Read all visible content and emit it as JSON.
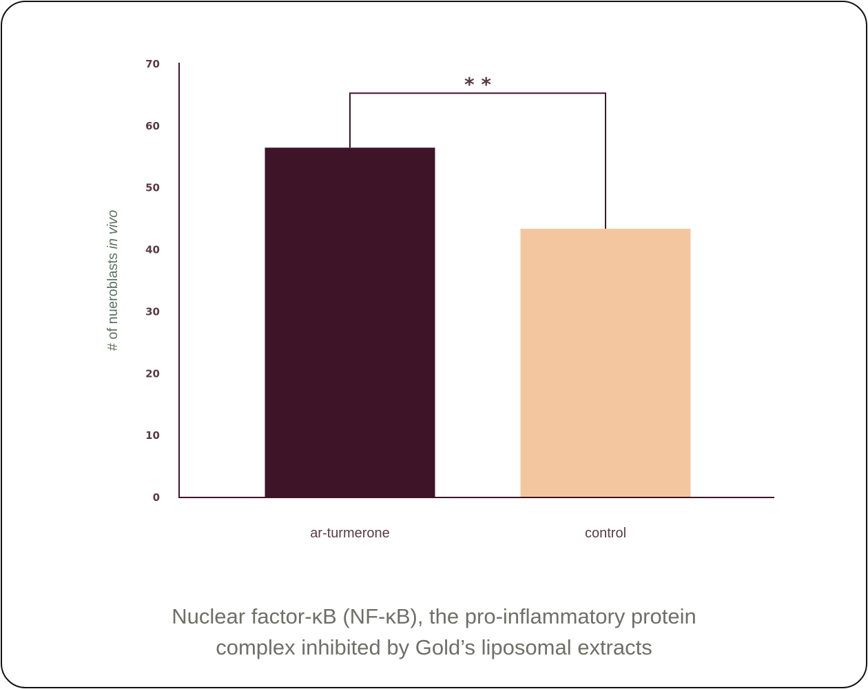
{
  "chart_data": {
    "type": "bar",
    "categories": [
      "ar-turmerone",
      "control"
    ],
    "values": [
      56.5,
      43.4
    ],
    "colors": [
      "#3d1428",
      "#f4c6a0"
    ],
    "ylabel_prefix": "# of nueroblasts ",
    "ylabel_italic": "in vivo",
    "xlabel": "",
    "ylim": [
      0,
      70
    ],
    "yticks": [
      0,
      10,
      20,
      30,
      40,
      50,
      60,
      70
    ],
    "significance": {
      "label": "* *",
      "between": [
        "ar-turmerone",
        "control"
      ],
      "bracket_level": 65.3
    },
    "grid": false,
    "axis_color": "#3d1428",
    "text_color": "#5a3a45"
  },
  "caption": {
    "line1": "Nuclear factor-κB (NF-κB), the pro-inflammatory protein",
    "line2": "complex inhibited by Gold’s liposomal extracts"
  }
}
